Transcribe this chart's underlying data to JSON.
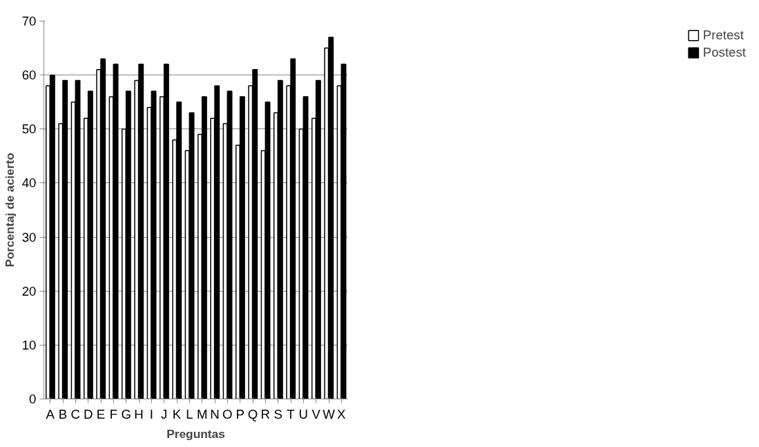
{
  "chart_data": {
    "type": "bar",
    "xlabel": "Preguntas",
    "ylabel": "Porcentaj de acierto",
    "categories": [
      "A",
      "B",
      "C",
      "D",
      "E",
      "F",
      "G",
      "H",
      "I",
      "J",
      "K",
      "L",
      "M",
      "N",
      "O",
      "P",
      "Q",
      "R",
      "S",
      "T",
      "U",
      "V",
      "W",
      "X"
    ],
    "series": [
      {
        "name": "Pretest",
        "color": "#ffffff",
        "values": [
          58,
          51,
          55,
          52,
          61,
          56,
          50,
          59,
          54,
          56,
          48,
          46,
          49,
          52,
          51,
          47,
          58,
          46,
          53,
          58,
          50,
          52,
          65,
          58
        ]
      },
      {
        "name": "Postest",
        "color": "#000000",
        "values": [
          60,
          59,
          59,
          57,
          63,
          62,
          57,
          62,
          57,
          62,
          55,
          53,
          56,
          58,
          57,
          56,
          61,
          55,
          59,
          63,
          56,
          59,
          67,
          62
        ]
      }
    ],
    "ylim": [
      0,
      70
    ],
    "yticks": [
      0,
      10,
      20,
      30,
      40,
      50,
      60,
      70
    ],
    "grid": "y",
    "legend": "right"
  }
}
